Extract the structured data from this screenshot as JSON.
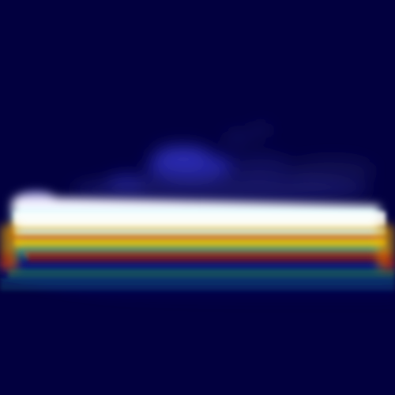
{
  "image": {
    "kind": "blurred heatmap / false-color image",
    "palette": {
      "background": "#02003f",
      "deep_blue": "#0a0a8a",
      "blue": "#1f3ad0",
      "cyan": "#43d3ff",
      "white": "#ffffff",
      "yellow": "#f5e000",
      "orange": "#ff8a00",
      "red": "#b00000",
      "dark_red": "#7a0000",
      "green": "#2ea84a",
      "teal": "#1aa0a0"
    }
  }
}
